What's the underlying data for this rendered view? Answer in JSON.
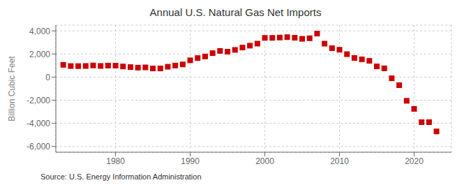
{
  "chart_data": {
    "type": "scatter",
    "title": "Annual U.S. Natural Gas Net Imports",
    "ylabel": "Billion Cubic Feet",
    "source": "Source: U.S. Energy Information Administration",
    "color": "#cc0000",
    "marker": "square",
    "grid": true,
    "x": [
      1973,
      1974,
      1975,
      1976,
      1977,
      1978,
      1979,
      1980,
      1981,
      1982,
      1983,
      1984,
      1985,
      1986,
      1987,
      1988,
      1989,
      1990,
      1991,
      1992,
      1993,
      1994,
      1995,
      1996,
      1997,
      1998,
      1999,
      2000,
      2001,
      2002,
      2003,
      2004,
      2005,
      2006,
      2007,
      2008,
      2009,
      2010,
      2011,
      2012,
      2013,
      2014,
      2015,
      2016,
      2017,
      2018,
      2019,
      2020,
      2021,
      2022,
      2023
    ],
    "values": [
      1062,
      958,
      953,
      963,
      1010,
      966,
      1000,
      994,
      922,
      868,
      820,
      843,
      750,
      750,
      900,
      1000,
      1100,
      1456,
      1650,
      1786,
      2074,
      2269,
      2200,
      2356,
      2561,
      2724,
      2898,
      3397,
      3398,
      3426,
      3459,
      3408,
      3315,
      3364,
      3769,
      2896,
      2504,
      2369,
      1988,
      1657,
      1537,
      1408,
      930,
      760,
      -100,
      -700,
      -2050,
      -2750,
      -3900,
      -3900,
      -4700
    ],
    "xlim": [
      1972,
      2025
    ],
    "xticks": [
      1980,
      1990,
      2000,
      2010,
      2020
    ],
    "ylim": [
      -6500,
      4500
    ],
    "yticks": [
      {
        "value": -6000,
        "label": "-6,000"
      },
      {
        "value": -4000,
        "label": "-4,000"
      },
      {
        "value": -2000,
        "label": "-2,000"
      },
      0,
      {
        "value": 2000,
        "label": "2,000"
      },
      {
        "value": 4000,
        "label": "4,000"
      }
    ]
  }
}
